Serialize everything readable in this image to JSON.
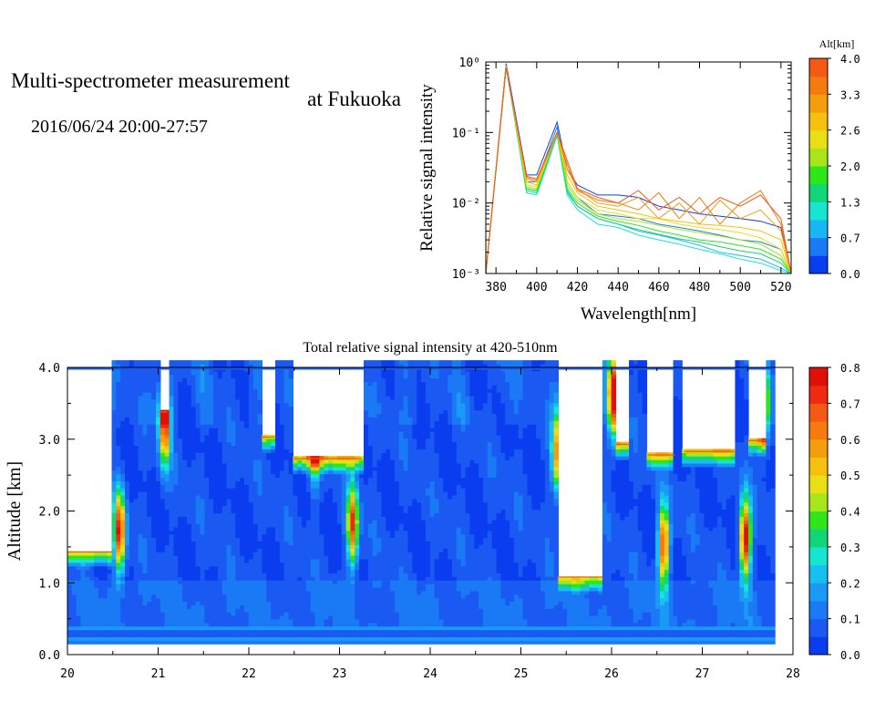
{
  "header": {
    "title_line1": "Multi-spectrometer measurement",
    "title_line2": "at Fukuoka",
    "datetime": "2016/06/24 20:00-27:57"
  },
  "chart_data": [
    {
      "type": "line",
      "title": "",
      "xlabel": "Wavelength[nm]",
      "ylabel": "Relative signal intensity",
      "xlim": [
        375,
        525
      ],
      "ylim": [
        0.001,
        1
      ],
      "yscale": "log",
      "x_ticks": [
        380,
        400,
        420,
        440,
        460,
        480,
        500,
        520
      ],
      "y_ticks": [
        "10⁻³",
        "10⁻²",
        "10⁻¹",
        "10⁰"
      ],
      "y_tick_values": [
        0.001,
        0.01,
        0.1,
        1
      ],
      "grid": false,
      "colorbar": {
        "label": "Alt[km]",
        "ticks": [
          "0.0",
          "0.7",
          "1.3",
          "2.0",
          "2.6",
          "3.3",
          "4.0"
        ],
        "colors": [
          "#0a3cf0",
          "#1a7af5",
          "#18b6f2",
          "#14e6d2",
          "#10d678",
          "#2ee61a",
          "#a8e61a",
          "#e8e014",
          "#f5c00e",
          "#f59e0c",
          "#f57a10",
          "#f55a14"
        ]
      },
      "x": [
        375,
        385,
        395,
        400,
        410,
        415,
        420,
        430,
        440,
        450,
        460,
        470,
        480,
        490,
        500,
        510,
        520,
        525
      ],
      "series": [
        {
          "color": "#0a3cf0",
          "values": [
            0.001,
            0.95,
            0.025,
            0.025,
            0.14,
            0.03,
            0.018,
            0.013,
            0.013,
            0.012,
            0.009,
            0.008,
            0.007,
            0.0065,
            0.006,
            0.0055,
            0.0045,
            0.001
          ]
        },
        {
          "color": "#1a7af5",
          "values": [
            0.001,
            0.9,
            0.02,
            0.02,
            0.12,
            0.02,
            0.012,
            0.007,
            0.0065,
            0.006,
            0.005,
            0.0045,
            0.004,
            0.0035,
            0.003,
            0.0028,
            0.0022,
            0.001
          ]
        },
        {
          "color": "#18b6f2",
          "values": [
            0.001,
            0.88,
            0.016,
            0.015,
            0.1,
            0.014,
            0.009,
            0.006,
            0.005,
            0.004,
            0.0035,
            0.003,
            0.0025,
            0.002,
            0.0018,
            0.0016,
            0.0012,
            0.001
          ]
        },
        {
          "color": "#14e6d2",
          "values": [
            0.001,
            0.85,
            0.014,
            0.013,
            0.09,
            0.013,
            0.008,
            0.005,
            0.0045,
            0.0035,
            0.003,
            0.0026,
            0.0022,
            0.0019,
            0.0016,
            0.0014,
            0.0011,
            0.001
          ]
        },
        {
          "color": "#10d678",
          "values": [
            0.001,
            0.86,
            0.015,
            0.014,
            0.095,
            0.015,
            0.009,
            0.006,
            0.005,
            0.0042,
            0.0036,
            0.0031,
            0.0028,
            0.0024,
            0.0021,
            0.0019,
            0.0014,
            0.001
          ]
        },
        {
          "color": "#2ee61a",
          "values": [
            0.001,
            0.87,
            0.016,
            0.015,
            0.1,
            0.016,
            0.01,
            0.0065,
            0.0055,
            0.0048,
            0.004,
            0.0035,
            0.003,
            0.0028,
            0.0025,
            0.0022,
            0.0016,
            0.001
          ]
        },
        {
          "color": "#a8e61a",
          "values": [
            0.001,
            0.87,
            0.017,
            0.016,
            0.1,
            0.018,
            0.011,
            0.007,
            0.006,
            0.0055,
            0.0048,
            0.0042,
            0.0038,
            0.0034,
            0.003,
            0.0026,
            0.0018,
            0.001
          ]
        },
        {
          "color": "#e8e014",
          "values": [
            0.001,
            0.88,
            0.018,
            0.017,
            0.1,
            0.02,
            0.012,
            0.008,
            0.007,
            0.006,
            0.006,
            0.005,
            0.0045,
            0.0042,
            0.0038,
            0.0032,
            0.0022,
            0.001
          ]
        },
        {
          "color": "#f5c00e",
          "values": [
            0.001,
            0.87,
            0.02,
            0.018,
            0.1,
            0.025,
            0.014,
            0.009,
            0.008,
            0.007,
            0.006,
            0.0055,
            0.005,
            0.0048,
            0.0045,
            0.004,
            0.003,
            0.001
          ]
        },
        {
          "color": "#f59e0c",
          "values": [
            0.001,
            0.85,
            0.022,
            0.02,
            0.1,
            0.03,
            0.016,
            0.01,
            0.009,
            0.012,
            0.006,
            0.01,
            0.005,
            0.011,
            0.006,
            0.008,
            0.004,
            0.001
          ]
        },
        {
          "color": "#f57a10",
          "values": [
            0.001,
            0.84,
            0.023,
            0.021,
            0.1,
            0.035,
            0.015,
            0.011,
            0.01,
            0.008,
            0.014,
            0.006,
            0.012,
            0.005,
            0.01,
            0.015,
            0.005,
            0.001
          ]
        },
        {
          "color": "#f55a14",
          "values": [
            0.001,
            0.84,
            0.024,
            0.022,
            0.1,
            0.04,
            0.016,
            0.012,
            0.01,
            0.015,
            0.008,
            0.012,
            0.007,
            0.012,
            0.009,
            0.013,
            0.006,
            0.001
          ]
        }
      ]
    },
    {
      "type": "heatmap",
      "title": "Total relative signal intensity at 420-510nm",
      "xlabel": "",
      "ylabel": "Altitude [km]",
      "xlim": [
        20,
        28
      ],
      "ylim": [
        0,
        4
      ],
      "x_ticks": [
        "20",
        "21",
        "22",
        "23",
        "24",
        "25",
        "26",
        "27",
        "28"
      ],
      "y_ticks": [
        "0.0",
        "1.0",
        "2.0",
        "3.0",
        "4.0"
      ],
      "colorbar": {
        "ticks": [
          "0.0",
          "0.1",
          "0.2",
          "0.3",
          "0.4",
          "0.5",
          "0.6",
          "0.7",
          "0.8"
        ],
        "range": [
          0,
          0.8
        ],
        "colors": [
          "#0a3cf0",
          "#1a5af2",
          "#1a7af5",
          "#1a9af5",
          "#18c0f2",
          "#14e6d2",
          "#10d678",
          "#2ee61a",
          "#a8e61a",
          "#e8e014",
          "#f5c00e",
          "#f59e0c",
          "#f57a10",
          "#f55a14",
          "#f02a10",
          "#e01008"
        ]
      },
      "cloud_regions": [
        {
          "t": [
            20.0,
            20.5
          ],
          "base_km": 1.35
        },
        {
          "t": [
            21.0,
            21.1
          ],
          "base_km": 3.3
        },
        {
          "t": [
            22.15,
            22.3
          ],
          "base_km": 2.95
        },
        {
          "t": [
            22.5,
            23.25
          ],
          "base_km": 2.65
        },
        {
          "t": [
            25.4,
            25.9
          ],
          "base_km": 1.0
        },
        {
          "t": [
            26.05,
            26.2
          ],
          "base_km": 2.85
        },
        {
          "t": [
            26.4,
            26.7
          ],
          "base_km": 2.7
        },
        {
          "t": [
            26.8,
            27.35
          ],
          "base_km": 2.75
        },
        {
          "t": [
            27.5,
            27.7
          ],
          "base_km": 2.9
        }
      ],
      "hotspots": [
        {
          "t": 20.55,
          "alt": 1.7,
          "v": 0.7
        },
        {
          "t": 21.05,
          "alt": 3.2,
          "v": 0.7
        },
        {
          "t": 22.7,
          "alt": 3.0,
          "v": 0.6
        },
        {
          "t": 23.12,
          "alt": 1.8,
          "v": 0.65
        },
        {
          "t": 25.38,
          "alt": 2.8,
          "v": 0.55
        },
        {
          "t": 26.0,
          "alt": 3.6,
          "v": 0.75
        },
        {
          "t": 26.55,
          "alt": 1.5,
          "v": 0.65
        },
        {
          "t": 27.45,
          "alt": 1.6,
          "v": 0.75
        },
        {
          "t": 27.65,
          "alt": 3.5,
          "v": 0.6
        }
      ]
    }
  ]
}
